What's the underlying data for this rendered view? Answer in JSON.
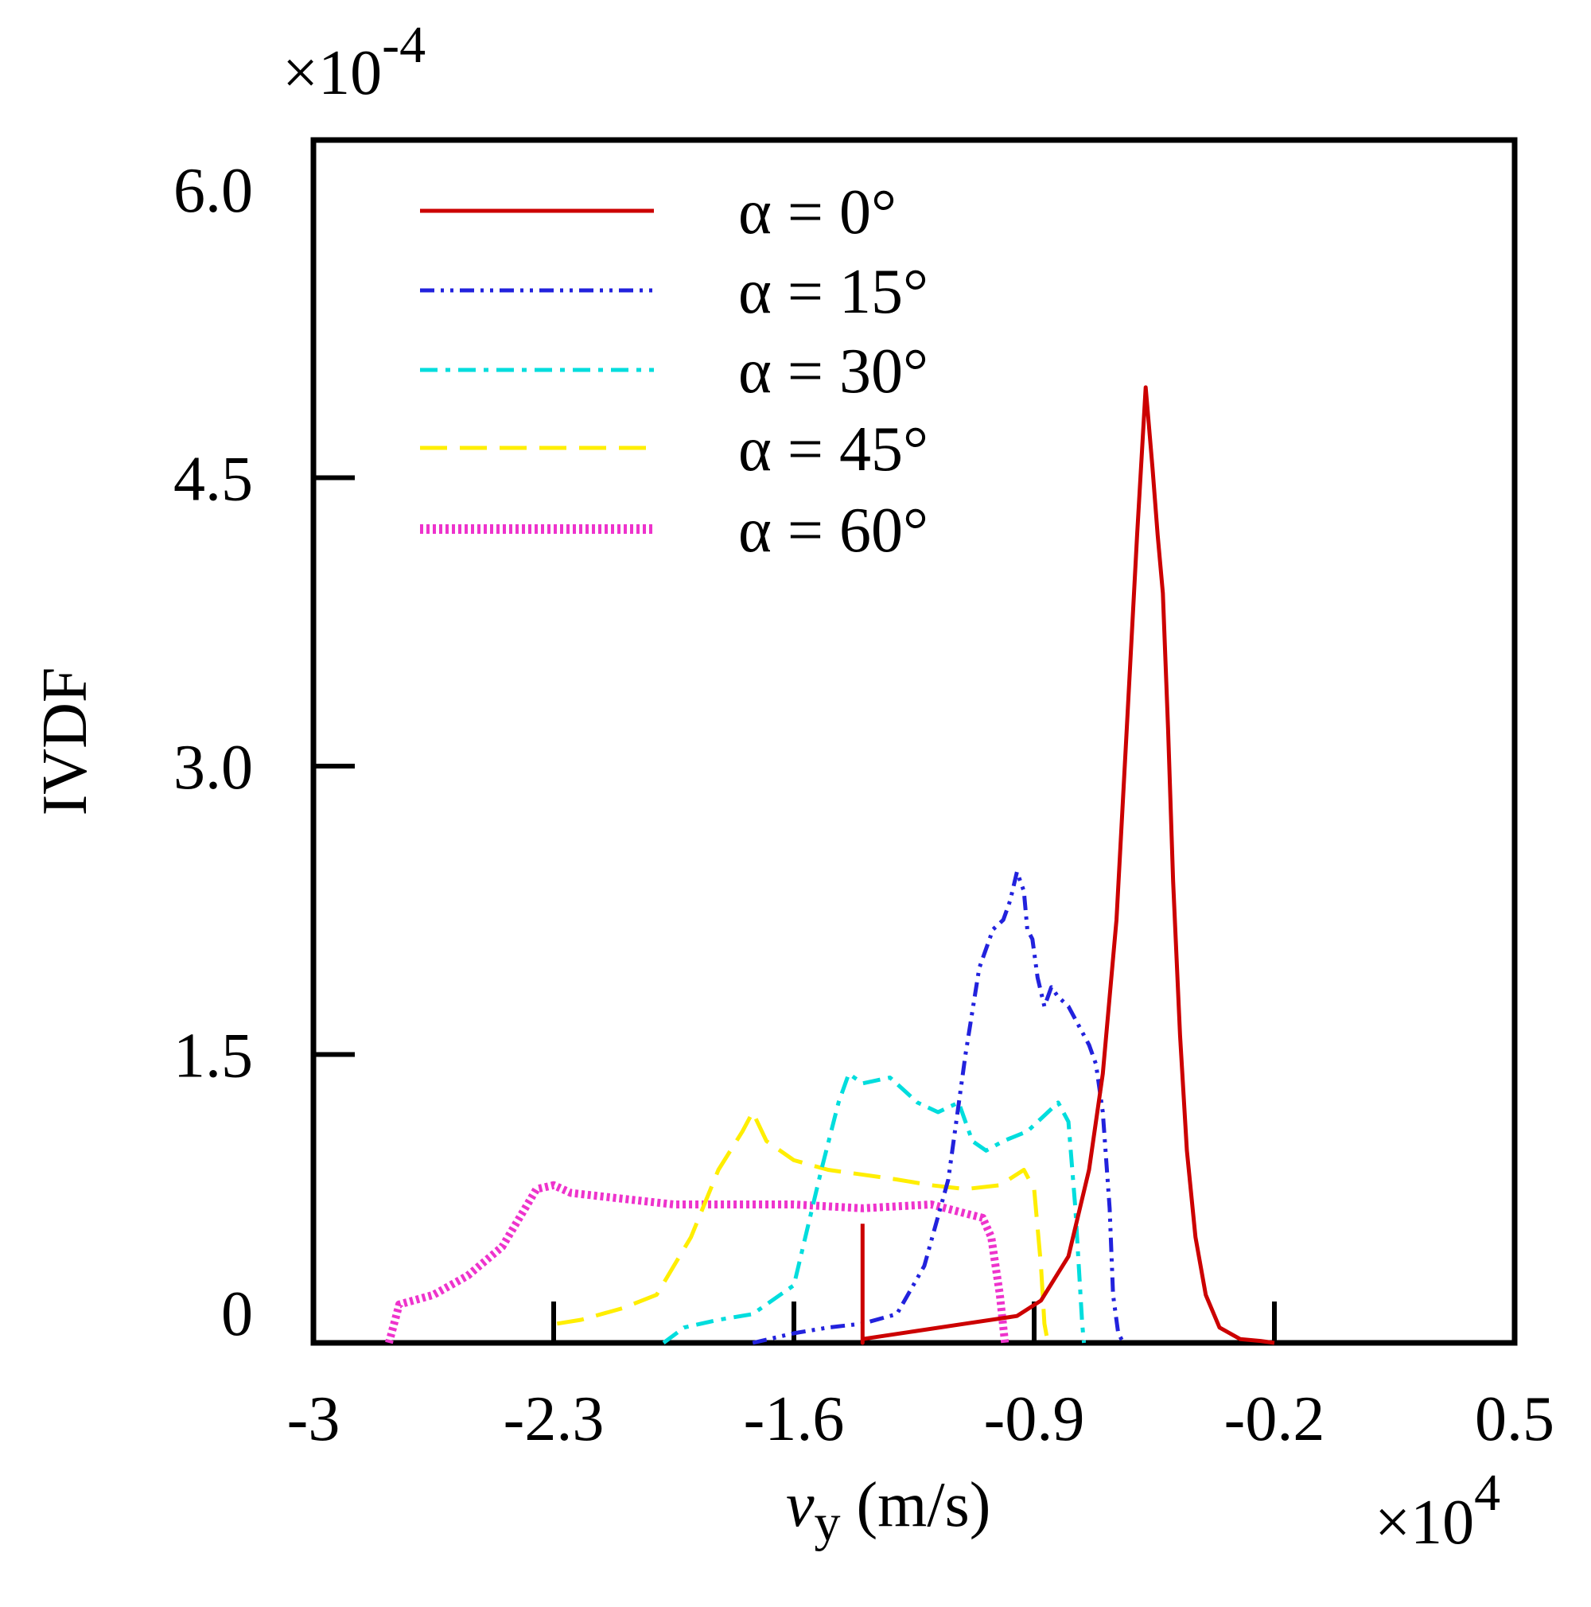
{
  "chart_data": {
    "type": "line",
    "title": "",
    "xlabel": "v",
    "xlabel_subscript": "y",
    "xlabel_units": "(m/s)",
    "ylabel": "IVDF",
    "x_multiplier": "×10",
    "x_multiplier_exp": "4",
    "y_multiplier": "×10",
    "y_multiplier_exp": "-4",
    "xlim": [
      -3,
      0.5
    ],
    "ylim": [
      0,
      6.0
    ],
    "x_ticks": [
      -3,
      -2.3,
      -1.6,
      -0.9,
      -0.2,
      0.5
    ],
    "x_tick_labels": [
      "-3",
      "-2.3",
      "-1.6",
      "-0.9",
      "-0.2",
      "0.5"
    ],
    "y_ticks": [
      0,
      1.5,
      3.0,
      4.5,
      6.0
    ],
    "y_tick_labels": [
      "0",
      "1.5",
      "3.0",
      "4.5",
      "6.0"
    ],
    "legend_position": "top-left",
    "series": [
      {
        "name": "α = 0°",
        "color": "#cc0000",
        "dash": "solid",
        "x": [
          -1.4,
          -1.4,
          -1.4,
          -1.25,
          -1.1,
          -0.95,
          -0.88,
          -0.8,
          -0.74,
          -0.7,
          -0.66,
          -0.63,
          -0.6,
          -0.575,
          -0.555,
          -0.54,
          -0.525,
          -0.51,
          -0.495,
          -0.475,
          -0.455,
          -0.43,
          -0.4,
          -0.36,
          -0.3,
          -0.24,
          -0.2
        ],
        "values": [
          0.62,
          0.0,
          0.02,
          0.06,
          0.1,
          0.14,
          0.22,
          0.45,
          0.9,
          1.4,
          2.2,
          3.2,
          4.2,
          4.97,
          4.55,
          4.2,
          3.9,
          3.2,
          2.4,
          1.6,
          1.0,
          0.55,
          0.25,
          0.08,
          0.02,
          0.01,
          0.0
        ]
      },
      {
        "name": "α = 15°",
        "color": "#2222dd",
        "dash": "18 8 4 8 4 8",
        "x": [
          -1.72,
          -1.6,
          -1.5,
          -1.4,
          -1.3,
          -1.22,
          -1.15,
          -1.1,
          -1.06,
          -1.02,
          -0.99,
          -0.97,
          -0.95,
          -0.93,
          -0.92,
          -0.905,
          -0.89,
          -0.87,
          -0.85,
          -0.83,
          -0.8,
          -0.77,
          -0.74,
          -0.72,
          -0.7,
          -0.68,
          -0.67,
          -0.655,
          -0.64
        ],
        "values": [
          0.0,
          0.05,
          0.08,
          0.1,
          0.15,
          0.4,
          0.85,
          1.5,
          1.95,
          2.15,
          2.2,
          2.3,
          2.45,
          2.35,
          2.15,
          2.1,
          1.9,
          1.75,
          1.85,
          1.8,
          1.75,
          1.65,
          1.55,
          1.45,
          1.2,
          0.7,
          0.25,
          0.05,
          0.0
        ]
      },
      {
        "name": "α = 30°",
        "color": "#00dddd",
        "dash": "22 10 6 10",
        "x": [
          -1.98,
          -1.92,
          -1.82,
          -1.72,
          -1.6,
          -1.52,
          -1.47,
          -1.44,
          -1.4,
          -1.32,
          -1.24,
          -1.18,
          -1.12,
          -1.08,
          -1.04,
          -0.99,
          -0.92,
          -0.86,
          -0.83,
          -0.8,
          -0.78,
          -0.77,
          -0.76,
          -0.755
        ],
        "values": [
          0.0,
          0.08,
          0.12,
          0.15,
          0.3,
          0.9,
          1.25,
          1.4,
          1.35,
          1.38,
          1.25,
          1.2,
          1.25,
          1.05,
          1.0,
          1.05,
          1.1,
          1.2,
          1.25,
          1.15,
          0.7,
          0.4,
          0.1,
          0.0
        ]
      },
      {
        "name": "α = 45°",
        "color": "#ffee00",
        "dash": "34 16",
        "x": [
          -2.29,
          -2.22,
          -2.1,
          -2.0,
          -1.9,
          -1.82,
          -1.75,
          -1.72,
          -1.68,
          -1.6,
          -1.5,
          -1.42,
          -1.3,
          -1.2,
          -1.1,
          -1.0,
          -0.93,
          -0.9,
          -0.88,
          -0.87,
          -0.86
        ],
        "values": [
          0.1,
          0.12,
          0.18,
          0.25,
          0.55,
          0.9,
          1.1,
          1.2,
          1.05,
          0.95,
          0.9,
          0.88,
          0.85,
          0.82,
          0.8,
          0.82,
          0.9,
          0.8,
          0.4,
          0.1,
          0.0
        ]
      },
      {
        "name": "α = 60°",
        "color": "#ee33cc",
        "dash": "4 4",
        "x": [
          -2.78,
          -2.75,
          -2.65,
          -2.55,
          -2.45,
          -2.35,
          -2.3,
          -2.25,
          -2.1,
          -1.95,
          -1.8,
          -1.6,
          -1.4,
          -1.2,
          -1.05,
          -1.025,
          -1.0,
          -0.985
        ],
        "values": [
          0.0,
          0.2,
          0.25,
          0.35,
          0.5,
          0.8,
          0.82,
          0.78,
          0.75,
          0.72,
          0.72,
          0.72,
          0.7,
          0.72,
          0.65,
          0.55,
          0.25,
          0.0
        ]
      }
    ]
  }
}
